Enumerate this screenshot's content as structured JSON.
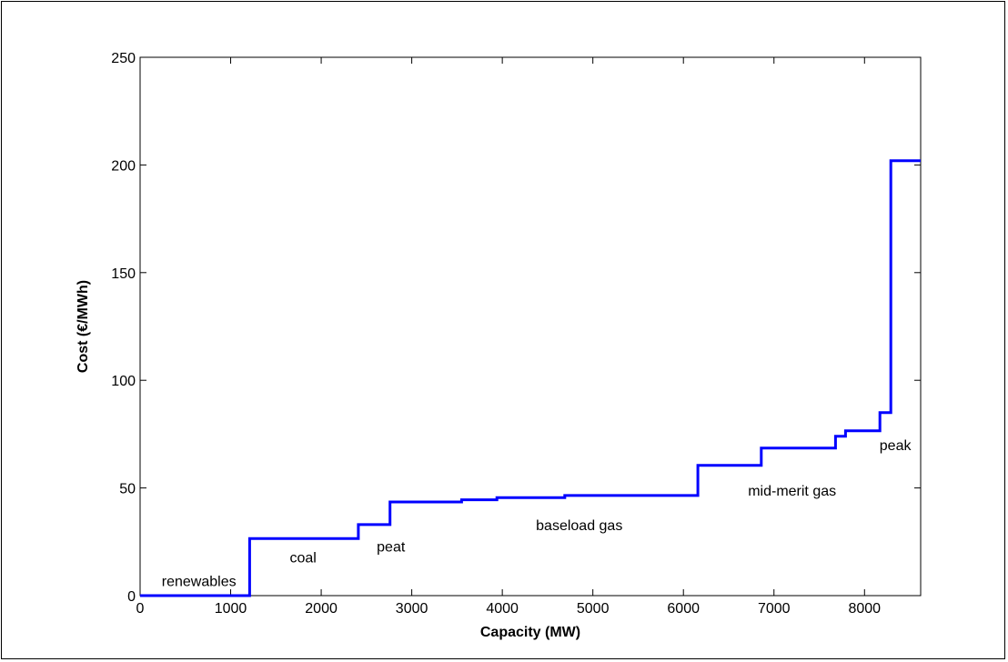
{
  "chart_data": {
    "type": "line",
    "step": true,
    "xlabel": "Capacity (MW)",
    "ylabel": "Cost (€/MWh)",
    "xlim": [
      0,
      8620
    ],
    "ylim": [
      0,
      250
    ],
    "xticks": [
      0,
      1000,
      2000,
      3000,
      4000,
      5000,
      6000,
      7000,
      8000
    ],
    "yticks": [
      0,
      50,
      100,
      150,
      200,
      250
    ],
    "grid": false,
    "line_color": "#0000ff",
    "series": [
      {
        "x": [
          0,
          1210,
          1210,
          2410,
          2410,
          2760,
          2760,
          3550,
          3550,
          3940,
          3940,
          4690,
          4690,
          6160,
          6160,
          6860,
          6860,
          7680,
          7680,
          7790,
          7790,
          8170,
          8170,
          8290,
          8290,
          8620
        ],
        "y": [
          0,
          0,
          26.5,
          26.5,
          33,
          33,
          43.5,
          43.5,
          44.5,
          44.5,
          45.5,
          45.5,
          46.5,
          46.5,
          60.5,
          60.5,
          68.5,
          68.5,
          74,
          74,
          76.5,
          76.5,
          85,
          85,
          202,
          202
        ]
      }
    ],
    "annotations": [
      {
        "text": "renewables",
        "x": 650,
        "y": 7
      },
      {
        "text": "coal",
        "x": 1800,
        "y": 18
      },
      {
        "text": "peat",
        "x": 2770,
        "y": 23
      },
      {
        "text": "baseload gas",
        "x": 4850,
        "y": 33
      },
      {
        "text": "mid-merit gas",
        "x": 7200,
        "y": 49
      },
      {
        "text": "peak",
        "x": 8340,
        "y": 70
      }
    ]
  }
}
